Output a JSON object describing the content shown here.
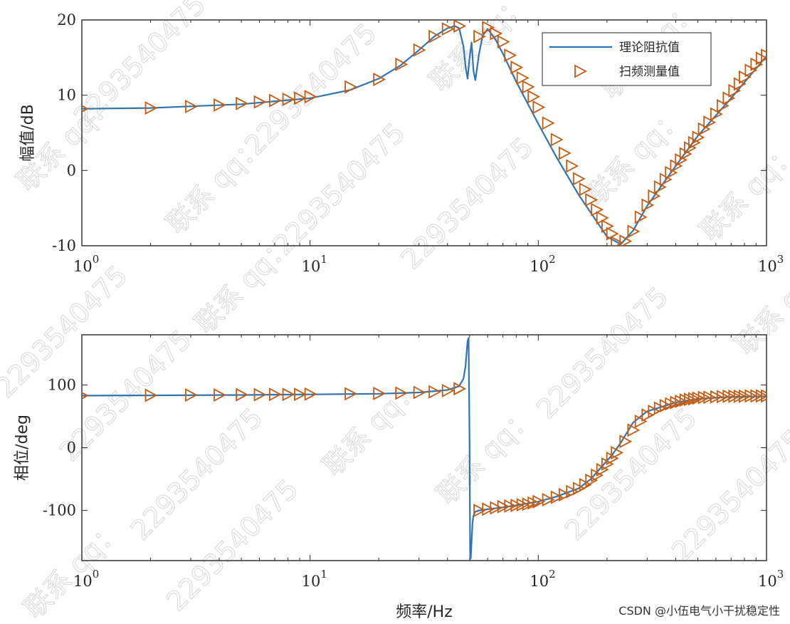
{
  "chart_data": [
    {
      "type": "line",
      "ylabel": "幅值/dB",
      "xscale": "log",
      "xlim": [
        1,
        1000
      ],
      "ylim": [
        -10,
        20
      ],
      "xticks": [
        {
          "base": "10",
          "exp": "0"
        },
        {
          "base": "10",
          "exp": "1"
        },
        {
          "base": "10",
          "exp": "2"
        },
        {
          "base": "10",
          "exp": "3"
        }
      ],
      "yticks": [
        "20",
        "10",
        "0",
        "-10"
      ],
      "legend": {
        "position": "top-right",
        "entries": [
          "理论阻抗值",
          "扫频测量值"
        ]
      },
      "series": [
        {
          "name": "理论阻抗值",
          "color": "#2E75B6",
          "marker": "none",
          "x": [
            1,
            2,
            5,
            10,
            15,
            20,
            25,
            30,
            35,
            40,
            43,
            45,
            47,
            48,
            49,
            50,
            51,
            52,
            53,
            55,
            57,
            60,
            65,
            70,
            80,
            100,
            120,
            150,
            200,
            230,
            260,
            300,
            400,
            500,
            700,
            1000
          ],
          "y": [
            8.2,
            8.3,
            8.8,
            9.6,
            10.7,
            12.2,
            14,
            16,
            17.8,
            18.9,
            19.2,
            18.9,
            16.5,
            13.8,
            12.2,
            15,
            17,
            13.2,
            12,
            15.5,
            17.9,
            18.8,
            17.4,
            15.5,
            11.8,
            6.2,
            1.8,
            -3.2,
            -8.8,
            -9.8,
            -8,
            -4.7,
            0.6,
            4.6,
            9.6,
            15.2
          ]
        },
        {
          "name": "扫频测量值",
          "color": "#C55A11",
          "marker": "triangle-right",
          "x": [
            1,
            2,
            3,
            4,
            5,
            6,
            7,
            8,
            9,
            10,
            15,
            20,
            25,
            30,
            35,
            40,
            45,
            55,
            60,
            65,
            70,
            75,
            80,
            85,
            90,
            95,
            100,
            110,
            120,
            130,
            140,
            150,
            160,
            170,
            180,
            190,
            200,
            210,
            220,
            240,
            260,
            280,
            300,
            320,
            340,
            360,
            380,
            400,
            420,
            440,
            460,
            480,
            500,
            530,
            560,
            600,
            640,
            680,
            720,
            760,
            800,
            850,
            900,
            950,
            1000
          ],
          "y": [
            8.2,
            8.3,
            8.5,
            8.7,
            8.9,
            9.1,
            9.3,
            9.45,
            9.6,
            9.8,
            11.1,
            12.1,
            14.1,
            16,
            17.8,
            18.8,
            19.2,
            17.8,
            19,
            18.2,
            17.1,
            15.3,
            13.7,
            12.3,
            11.1,
            9.8,
            8.4,
            6.3,
            4.1,
            2.3,
            0.6,
            -1.1,
            -2.5,
            -3.9,
            -5.2,
            -6.3,
            -7.4,
            -8.4,
            -9.6,
            -9.4,
            -8.1,
            -6.2,
            -4.6,
            -3.4,
            -2.2,
            -1.2,
            -0.3,
            0.6,
            1.4,
            2.2,
            3,
            3.7,
            4.4,
            5.5,
            6.4,
            7.5,
            8.6,
            9.6,
            10.6,
            11.5,
            12.4,
            13.3,
            14.1,
            14.9,
            15.3
          ]
        }
      ]
    },
    {
      "type": "line",
      "xlabel": "频率/Hz",
      "ylabel": "相位/deg",
      "xscale": "log",
      "xlim": [
        1,
        1000
      ],
      "ylim": [
        -180,
        180
      ],
      "xticks": [
        {
          "base": "10",
          "exp": "0"
        },
        {
          "base": "10",
          "exp": "1"
        },
        {
          "base": "10",
          "exp": "2"
        },
        {
          "base": "10",
          "exp": "3"
        }
      ],
      "yticks": [
        "100",
        "0",
        "-100"
      ],
      "series": [
        {
          "name": "理论阻抗值",
          "color": "#2E75B6",
          "marker": "none",
          "x": [
            1,
            5,
            10,
            20,
            30,
            40,
            45,
            47,
            48,
            49,
            49.5,
            50,
            50.3,
            50.6,
            51,
            51.5,
            52,
            53,
            55,
            60,
            70,
            80,
            100,
            120,
            150,
            170,
            190,
            210,
            230,
            260,
            300,
            400,
            500,
            700,
            1000
          ],
          "y": [
            83,
            84,
            85,
            86,
            88,
            92,
            98,
            110,
            130,
            170,
            175,
            0,
            -178,
            -175,
            -150,
            -120,
            -108,
            -102,
            -100,
            -98,
            -95,
            -92,
            -86,
            -78,
            -65,
            -50,
            -30,
            -12,
            8,
            40,
            58,
            72,
            78,
            81,
            82
          ]
        },
        {
          "name": "扫频测量值",
          "color": "#C55A11",
          "marker": "triangle-right",
          "x": [
            1,
            2,
            3,
            4,
            5,
            6,
            7,
            8,
            9,
            10,
            15,
            20,
            25,
            30,
            35,
            40,
            45,
            55,
            60,
            65,
            70,
            75,
            80,
            85,
            90,
            95,
            100,
            110,
            120,
            130,
            140,
            150,
            160,
            170,
            180,
            190,
            200,
            210,
            220,
            240,
            260,
            280,
            300,
            320,
            340,
            360,
            380,
            400,
            420,
            440,
            460,
            480,
            500,
            530,
            560,
            600,
            640,
            680,
            720,
            760,
            800,
            850,
            900,
            950,
            1000
          ],
          "y": [
            83,
            83.5,
            84,
            84,
            84.5,
            84.5,
            85,
            85,
            85,
            85.5,
            86,
            86.5,
            87,
            88,
            89,
            91,
            94,
            -100,
            -98,
            -96,
            -94,
            -93,
            -92,
            -91,
            -90,
            -88,
            -86,
            -83,
            -79,
            -75,
            -70,
            -65,
            -59,
            -52,
            -44,
            -35,
            -26,
            -17,
            -8,
            10,
            28,
            42,
            52,
            58,
            63,
            67,
            70,
            72,
            74,
            76,
            77,
            78,
            79,
            80,
            80.5,
            81,
            81.5,
            82,
            82,
            82,
            82,
            82.5,
            82.5,
            82.5,
            82.5
          ]
        }
      ]
    }
  ],
  "watermark": {
    "text_a": "联系 qq：",
    "text_b": "2293540475"
  },
  "credit": "CSDN @小伍电气小干扰稳定性"
}
